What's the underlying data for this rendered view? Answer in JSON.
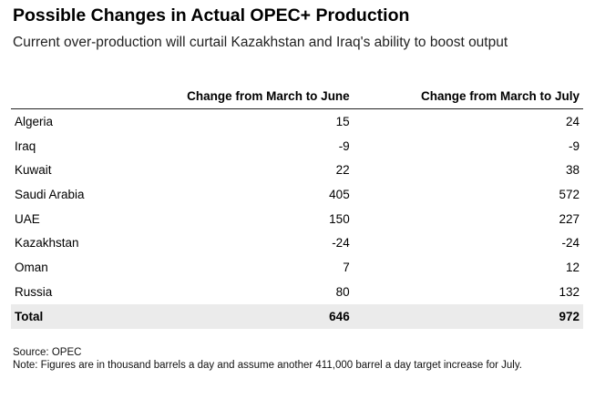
{
  "title": "Possible Changes in Actual OPEC+ Production",
  "subtitle": "Current over-production will curtail Kazakhstan and Iraq's ability to boost output",
  "chart_data": {
    "type": "table",
    "columns": [
      "",
      "Change from March to June",
      "Change from March to July"
    ],
    "rows": [
      {
        "name": "Algeria",
        "june": "15",
        "july": "24"
      },
      {
        "name": "Iraq",
        "june": "-9",
        "july": "-9"
      },
      {
        "name": "Kuwait",
        "june": "22",
        "july": "38"
      },
      {
        "name": "Saudi Arabia",
        "june": "405",
        "july": "572"
      },
      {
        "name": "UAE",
        "june": "150",
        "july": "227"
      },
      {
        "name": "Kazakhstan",
        "june": "-24",
        "july": "-24"
      },
      {
        "name": "Oman",
        "june": "7",
        "july": "12"
      },
      {
        "name": "Russia",
        "june": "80",
        "july": "132"
      }
    ],
    "total": {
      "name": "Total",
      "june": "646",
      "july": "972"
    }
  },
  "source": "Source: OPEC",
  "note": "Note: Figures are in thousand barrels a day and assume another 411,000 barrel a day target increase for July.",
  "colors": {
    "total_row_bg": "#ebebeb",
    "header_rule": "#222222"
  }
}
